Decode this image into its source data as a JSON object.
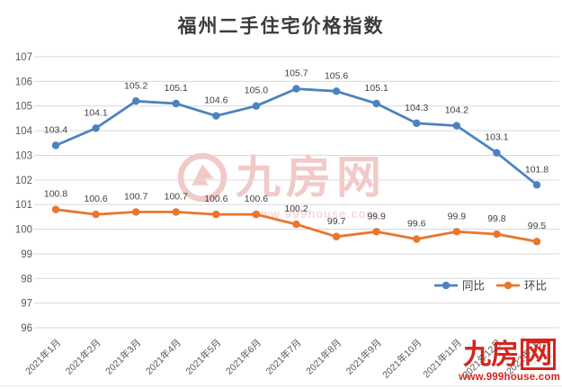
{
  "chart_data": {
    "type": "line",
    "title": "福州二手住宅价格指数",
    "categories": [
      "2021年1月",
      "2021年2月",
      "2021年3月",
      "2021年4月",
      "2021年5月",
      "2021年6月",
      "2021年7月",
      "2021年8月",
      "2021年9月",
      "2021年10月",
      "2021年11月",
      "2021年12月",
      "2022年1月"
    ],
    "series": [
      {
        "name": "同比",
        "color": "#4d82c0",
        "values": [
          103.4,
          104.1,
          105.2,
          105.1,
          104.6,
          105.0,
          105.7,
          105.6,
          105.1,
          104.3,
          104.2,
          103.1,
          101.8
        ]
      },
      {
        "name": "环比",
        "color": "#e9762d",
        "values": [
          100.8,
          100.6,
          100.7,
          100.7,
          100.6,
          100.6,
          100.2,
          99.7,
          99.9,
          99.6,
          99.9,
          99.8,
          99.5
        ]
      }
    ],
    "xlabel": "",
    "ylabel": "",
    "ylim": [
      96,
      107
    ],
    "ytick_step": 1,
    "grid": true,
    "data_labels": true,
    "legend_position": "middle-right"
  },
  "watermark": {
    "brand": "九房网",
    "url": "www.999house.com"
  },
  "logo": {
    "brand_main": "九房",
    "brand_boxed": "网",
    "url": "www.999house.com"
  },
  "colors": {
    "gridline": "#d9d9d9",
    "tick_label": "#595959",
    "data_label": "#3f3f3f",
    "legend_label": "#404040",
    "title": "#3b3b3b",
    "logo_red": "#d3261d",
    "watermark_red": "#d4524c"
  }
}
